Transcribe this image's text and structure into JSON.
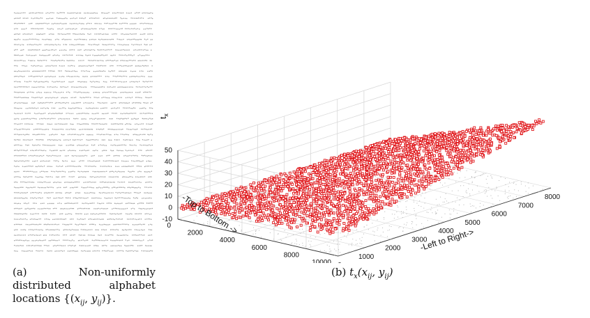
{
  "figure_a": {
    "caption_tag": "(a)",
    "caption_word1": "Non-uniformly",
    "caption_word2": "distributed",
    "caption_word3": "alphabet",
    "caption_line3": "locations {(x_ij, y_ij)}."
  },
  "figure_b": {
    "caption_tag": "(b)",
    "caption_math": "t_x(x_ij, y_ij)"
  },
  "colors": {
    "markers": "#e0161a",
    "grid": "#d8d8d8",
    "axes": "#333333"
  },
  "chart_data": {
    "type": "scatter",
    "projection": "3d",
    "xlabel": "-Left to Right->",
    "ylabel": "-Top to Bottom ->",
    "zlabel": "t_x",
    "xlim": [
      0,
      8000
    ],
    "ylim": [
      0,
      10000
    ],
    "zlim": [
      -10,
      50
    ],
    "x_ticks": [
      0,
      1000,
      2000,
      3000,
      4000,
      5000,
      6000,
      7000,
      8000
    ],
    "y_ticks": [
      0,
      2000,
      4000,
      6000,
      8000,
      10000
    ],
    "z_ticks": [
      -10,
      0,
      10,
      20,
      30,
      40,
      50
    ],
    "grid": true,
    "surface_model": {
      "description": "t_x rises linearly from top-left to bottom-right corner",
      "corner_values": {
        "x0_y0": 0,
        "x8000_y0": 0,
        "x0_y10000": 8,
        "x8000_y10000": 50
      }
    }
  }
}
